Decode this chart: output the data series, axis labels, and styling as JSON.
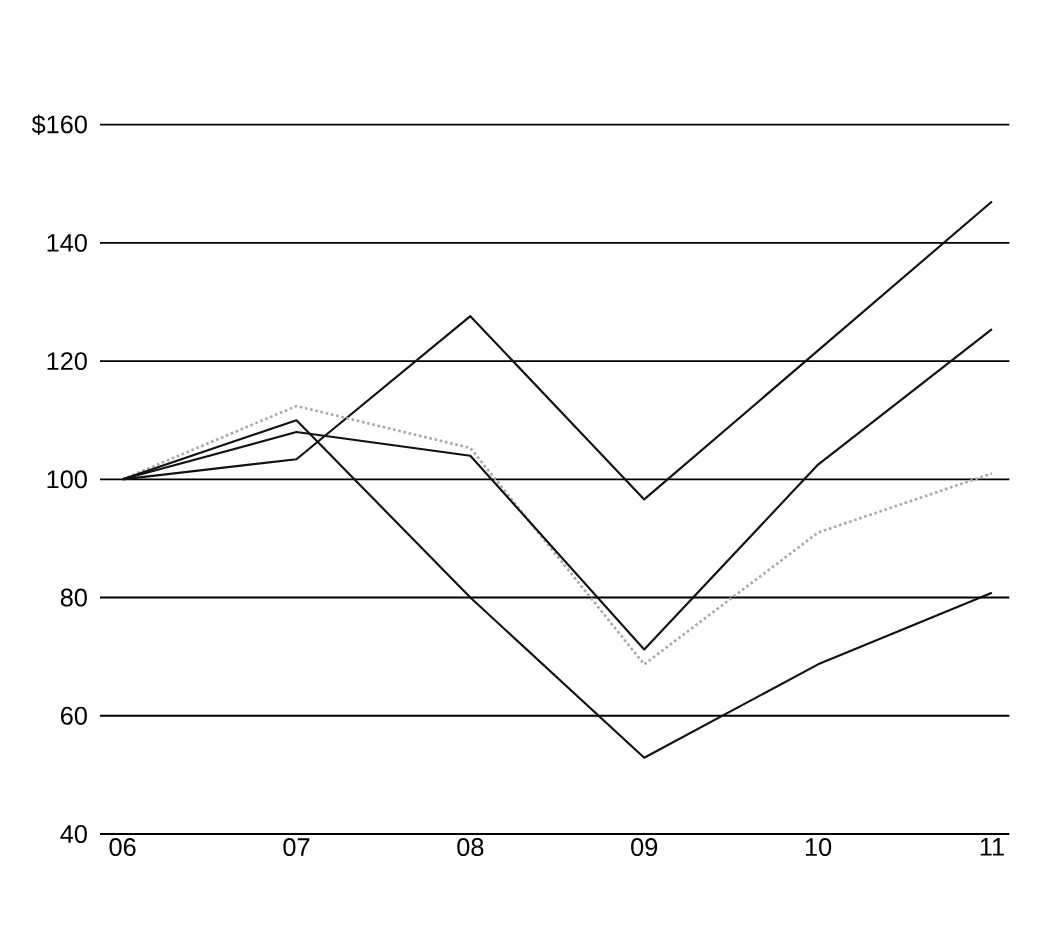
{
  "chart_data": {
    "type": "line",
    "categories": [
      "06",
      "07",
      "08",
      "09",
      "10",
      "11"
    ],
    "series": [
      {
        "color": "#111111",
        "values": [
          100,
          103.4,
          127.6,
          96.6,
          121.8,
          147
        ]
      },
      {
        "color": "#aaaaaa",
        "line_style": "dotted",
        "values": [
          100,
          112.4,
          105.3,
          68.7,
          91,
          101
        ]
      },
      {
        "color": "#111111",
        "values": [
          100,
          108,
          104,
          71.2,
          102.5,
          125.4
        ]
      },
      {
        "color": "#111111",
        "values": [
          100,
          110,
          80,
          52.9,
          68.7,
          80.8
        ]
      }
    ],
    "ylim": [
      40,
      160
    ],
    "yticks": [
      40,
      60,
      80,
      100,
      120,
      140,
      {
        "value": 160,
        "label": "$160"
      }
    ],
    "grid": "y",
    "marker": "none"
  }
}
